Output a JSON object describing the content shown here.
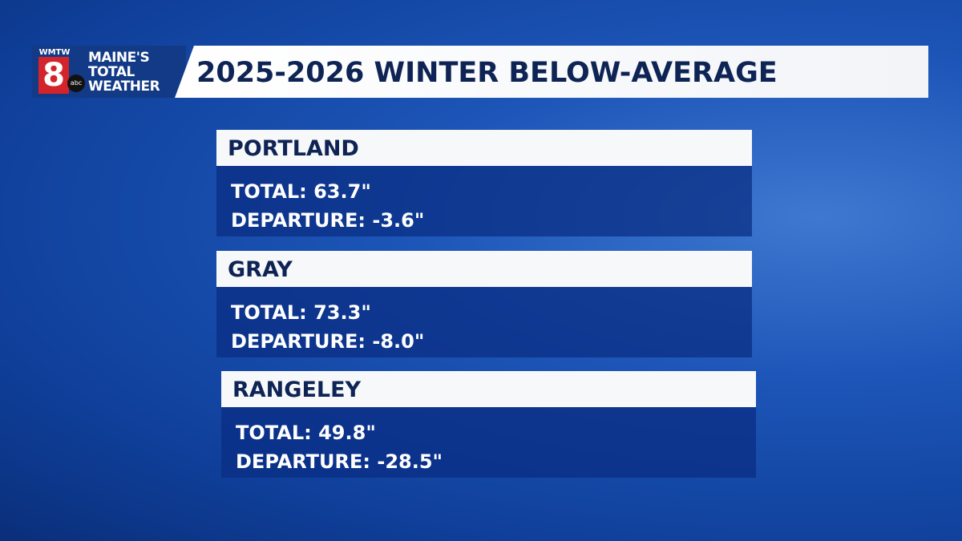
{
  "header": {
    "logo": {
      "station": "WMTW",
      "number": "8",
      "network": "abc",
      "line1": "MAINE'S",
      "line2": "TOTAL",
      "line3": "WEATHER"
    },
    "title": "2025-2026 WINTER BELOW-AVERAGE"
  },
  "cards": [
    {
      "name": "PORTLAND",
      "total": "TOTAL: 63.7\"",
      "departure": "DEPARTURE: -3.6\""
    },
    {
      "name": "GRAY",
      "total": "TOTAL: 73.3\"",
      "departure": "DEPARTURE: -8.0\""
    },
    {
      "name": "RANGELEY",
      "total": "TOTAL: 49.8\"",
      "departure": "DEPARTURE: -28.5\""
    }
  ]
}
